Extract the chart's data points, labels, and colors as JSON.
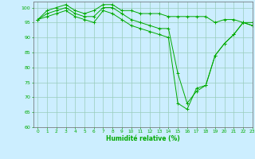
{
  "xlabel": "Humidité relative (%)",
  "background_color": "#cceeff",
  "grid_color": "#99ccbb",
  "line_color": "#00aa00",
  "ylim": [
    60,
    102
  ],
  "xlim": [
    -0.5,
    23
  ],
  "yticks": [
    60,
    65,
    70,
    75,
    80,
    85,
    90,
    95,
    100
  ],
  "xticks": [
    0,
    1,
    2,
    3,
    4,
    5,
    6,
    7,
    8,
    9,
    10,
    11,
    12,
    13,
    14,
    15,
    16,
    17,
    18,
    19,
    20,
    21,
    22,
    23
  ],
  "line1_x": [
    0,
    1,
    2,
    3,
    4,
    5,
    6,
    7,
    8,
    9,
    10,
    11,
    12,
    13,
    14,
    15,
    16,
    17,
    18,
    19,
    20,
    21,
    22,
    23
  ],
  "line1_y": [
    96,
    99,
    100,
    101,
    99,
    98,
    99,
    101,
    101,
    99,
    99,
    98,
    98,
    98,
    97,
    97,
    97,
    97,
    97,
    95,
    96,
    96,
    95,
    95
  ],
  "line2_x": [
    0,
    1,
    2,
    3,
    4,
    5,
    6,
    7,
    8,
    9,
    10,
    11,
    12,
    13,
    14,
    15,
    16,
    17,
    18,
    19,
    20,
    21,
    22,
    23
  ],
  "line2_y": [
    96,
    98,
    99,
    100,
    98,
    97,
    97,
    100,
    100,
    98,
    96,
    95,
    94,
    93,
    93,
    78,
    68,
    72,
    74,
    84,
    88,
    91,
    95,
    94
  ],
  "line3_x": [
    0,
    1,
    2,
    3,
    4,
    5,
    6,
    7,
    8,
    9,
    10,
    11,
    12,
    13,
    14,
    15,
    16,
    17,
    18,
    19,
    20,
    21,
    22,
    23
  ],
  "line3_y": [
    96,
    97,
    98,
    99,
    97,
    96,
    95,
    99,
    98,
    96,
    94,
    93,
    92,
    91,
    90,
    68,
    66,
    73,
    74,
    84,
    88,
    91,
    95,
    94
  ]
}
